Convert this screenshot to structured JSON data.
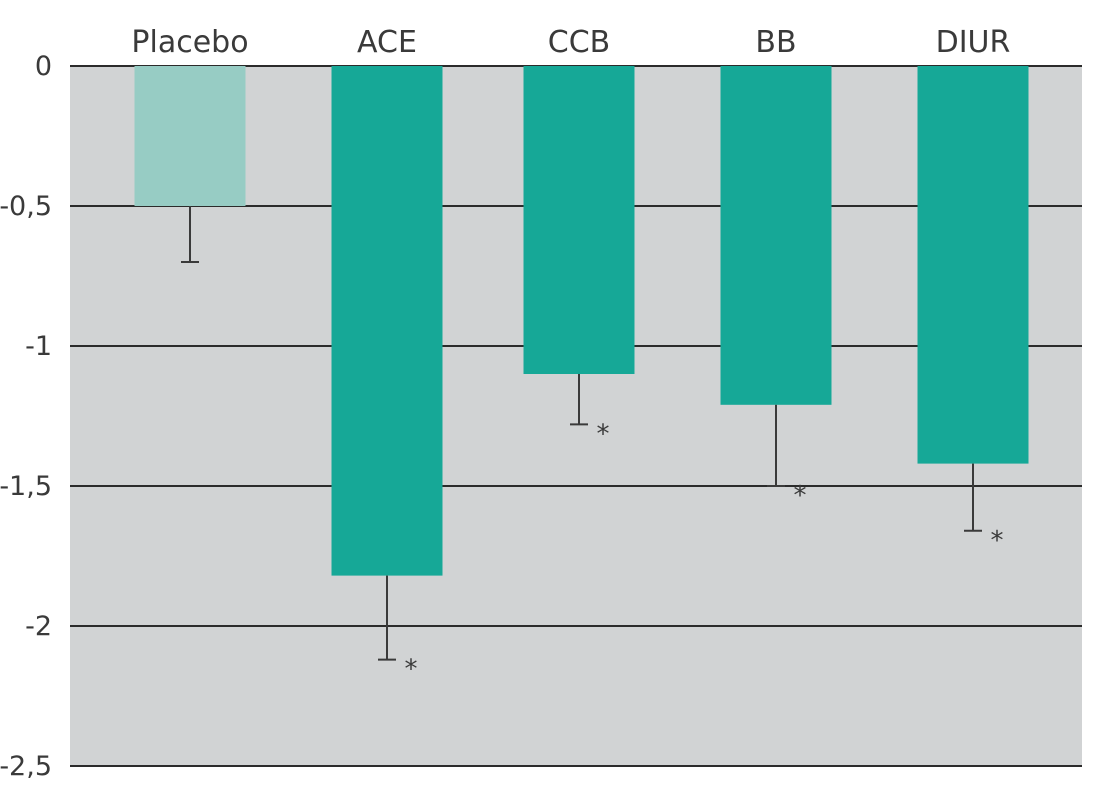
{
  "chart_data": {
    "type": "bar",
    "title": "",
    "xlabel": "",
    "ylabel": "",
    "categories": [
      "Placebo",
      "ACE",
      "CCB",
      "BB",
      "DIUR"
    ],
    "values": [
      -0.5,
      -1.82,
      -1.1,
      -1.21,
      -1.42
    ],
    "error_bars": [
      0.2,
      0.3,
      0.18,
      0.29,
      0.24
    ],
    "significance": [
      "",
      "*",
      "*",
      "*",
      "*"
    ],
    "ylim": [
      -2.5,
      0
    ],
    "yticks": [
      0,
      -0.5,
      -1,
      -1.5,
      -2,
      -2.5
    ],
    "ytick_labels": [
      "0",
      "-0,5",
      "-1",
      "-1,5",
      "-2",
      "-2,5"
    ],
    "x_axis_position": "top",
    "grid": true,
    "legend": "none",
    "colors": {
      "plot_background": "#d1d3d4",
      "bar": "#16a897",
      "bar_placebo": "#97ccc4",
      "gridline": "#2b2b2b",
      "error_bar": "#3a3a3a"
    }
  }
}
